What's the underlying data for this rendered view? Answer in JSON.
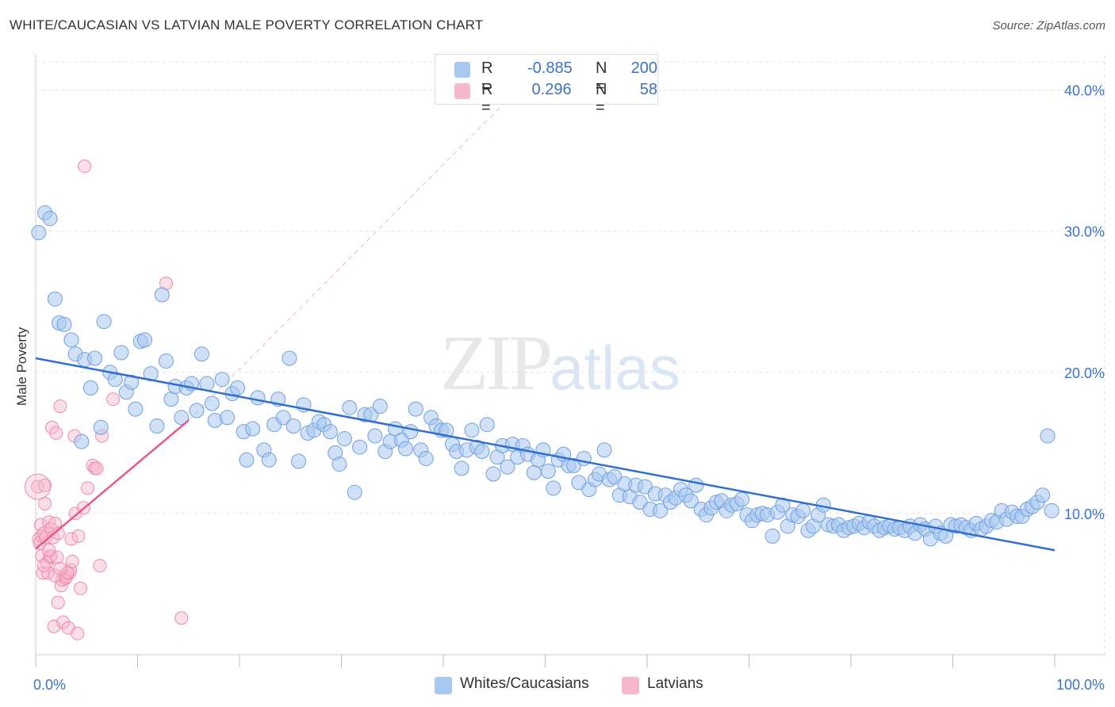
{
  "title": "WHITE/CAUCASIAN VS LATVIAN MALE POVERTY CORRELATION CHART",
  "source": "Source: ZipAtlas.com",
  "watermark": {
    "zip": "ZIP",
    "atlas": "atlas"
  },
  "legend": {
    "rows": [
      {
        "r_label": "R =",
        "r_value": "-0.885",
        "n_label": "N =",
        "n_value": "200",
        "color": "#a9c8f0"
      },
      {
        "r_label": "R =",
        "r_value": " 0.296",
        "n_label": "N =",
        "n_value": "58",
        "color": "#f7b8cb"
      }
    ]
  },
  "bottom_legend": [
    {
      "label": "Whites/Caucasians",
      "color": "#a9c8f0"
    },
    {
      "label": "Latvians",
      "color": "#f7b8cb"
    }
  ],
  "chart_data": {
    "type": "scatter",
    "title": "WHITE/CAUCASIAN VS LATVIAN MALE POVERTY CORRELATION CHART",
    "xlabel": "",
    "ylabel": "Male Poverty",
    "xlim": [
      0,
      100
    ],
    "ylim": [
      0,
      42
    ],
    "x_tick_labels": [
      "0.0%",
      "100.0%"
    ],
    "y_ticks": [
      10,
      20,
      30,
      40
    ],
    "y_tick_labels": [
      "10.0%",
      "20.0%",
      "30.0%",
      "40.0%"
    ],
    "grid": true,
    "legend_position": "top-center",
    "colors": {
      "white": "#6fa0e0",
      "latvian": "#f08aaa",
      "white_line": "#2f6fd0",
      "latvian_line": "#e85a8a"
    },
    "series": [
      {
        "name": "Whites/Caucasians",
        "R": -0.885,
        "N": 200,
        "trend": {
          "x": [
            0,
            100
          ],
          "y": [
            21.0,
            7.4
          ]
        },
        "points": [
          [
            0.3,
            29.9
          ],
          [
            0.9,
            31.3
          ],
          [
            1.4,
            30.9
          ],
          [
            1.9,
            25.2
          ],
          [
            2.3,
            23.5
          ],
          [
            2.8,
            23.4
          ],
          [
            3.5,
            22.3
          ],
          [
            3.9,
            21.3
          ],
          [
            4.5,
            15.1
          ],
          [
            4.8,
            20.9
          ],
          [
            5.4,
            18.9
          ],
          [
            5.8,
            21.0
          ],
          [
            6.4,
            16.1
          ],
          [
            6.7,
            23.6
          ],
          [
            7.3,
            20.0
          ],
          [
            7.8,
            19.5
          ],
          [
            8.4,
            21.4
          ],
          [
            8.9,
            18.6
          ],
          [
            9.4,
            19.3
          ],
          [
            9.8,
            17.4
          ],
          [
            10.3,
            22.2
          ],
          [
            10.7,
            22.3
          ],
          [
            11.3,
            19.9
          ],
          [
            11.9,
            16.2
          ],
          [
            12.4,
            25.5
          ],
          [
            12.8,
            20.8
          ],
          [
            13.3,
            18.1
          ],
          [
            13.7,
            19.0
          ],
          [
            14.3,
            16.8
          ],
          [
            14.8,
            18.9
          ],
          [
            15.3,
            19.2
          ],
          [
            15.8,
            17.3
          ],
          [
            16.3,
            21.3
          ],
          [
            16.8,
            19.2
          ],
          [
            17.3,
            17.8
          ],
          [
            17.6,
            16.6
          ],
          [
            18.3,
            19.5
          ],
          [
            18.8,
            16.8
          ],
          [
            19.3,
            18.5
          ],
          [
            19.8,
            18.9
          ],
          [
            20.4,
            15.8
          ],
          [
            20.7,
            13.8
          ],
          [
            21.3,
            16.0
          ],
          [
            21.8,
            18.2
          ],
          [
            22.4,
            14.5
          ],
          [
            22.9,
            13.8
          ],
          [
            23.4,
            16.3
          ],
          [
            23.8,
            18.1
          ],
          [
            24.3,
            16.8
          ],
          [
            24.9,
            21.0
          ],
          [
            25.3,
            16.2
          ],
          [
            25.8,
            13.7
          ],
          [
            26.3,
            17.7
          ],
          [
            26.7,
            15.7
          ],
          [
            27.3,
            15.9
          ],
          [
            27.8,
            16.5
          ],
          [
            28.3,
            16.3
          ],
          [
            28.9,
            15.8
          ],
          [
            29.4,
            14.3
          ],
          [
            29.8,
            13.5
          ],
          [
            30.3,
            15.3
          ],
          [
            30.8,
            17.5
          ],
          [
            31.3,
            11.5
          ],
          [
            31.8,
            14.7
          ],
          [
            32.3,
            17.0
          ],
          [
            32.9,
            17.0
          ],
          [
            33.3,
            15.5
          ],
          [
            33.8,
            17.6
          ],
          [
            34.3,
            14.4
          ],
          [
            34.8,
            15.1
          ],
          [
            35.3,
            16.0
          ],
          [
            35.9,
            15.2
          ],
          [
            36.3,
            14.6
          ],
          [
            36.8,
            15.8
          ],
          [
            37.3,
            17.4
          ],
          [
            37.8,
            14.5
          ],
          [
            38.3,
            13.9
          ],
          [
            38.8,
            16.8
          ],
          [
            39.3,
            16.2
          ],
          [
            39.8,
            15.9
          ],
          [
            40.3,
            15.9
          ],
          [
            40.9,
            14.9
          ],
          [
            41.3,
            14.4
          ],
          [
            41.8,
            13.2
          ],
          [
            42.3,
            14.5
          ],
          [
            42.8,
            15.9
          ],
          [
            43.3,
            14.7
          ],
          [
            43.8,
            14.4
          ],
          [
            44.3,
            16.3
          ],
          [
            44.9,
            12.8
          ],
          [
            45.3,
            14.0
          ],
          [
            45.8,
            14.8
          ],
          [
            46.3,
            13.3
          ],
          [
            46.8,
            14.9
          ],
          [
            47.3,
            14.0
          ],
          [
            47.8,
            14.8
          ],
          [
            48.3,
            14.2
          ],
          [
            48.9,
            12.9
          ],
          [
            49.3,
            13.8
          ],
          [
            49.8,
            14.5
          ],
          [
            50.3,
            13.0
          ],
          [
            50.8,
            11.8
          ],
          [
            51.3,
            13.8
          ],
          [
            51.8,
            14.2
          ],
          [
            52.3,
            13.4
          ],
          [
            52.8,
            13.4
          ],
          [
            53.3,
            12.2
          ],
          [
            53.8,
            13.9
          ],
          [
            54.3,
            11.7
          ],
          [
            54.9,
            12.4
          ],
          [
            55.3,
            12.8
          ],
          [
            55.8,
            14.5
          ],
          [
            56.3,
            12.4
          ],
          [
            56.8,
            12.6
          ],
          [
            57.3,
            11.3
          ],
          [
            57.8,
            12.1
          ],
          [
            58.3,
            11.2
          ],
          [
            58.9,
            12.0
          ],
          [
            59.3,
            10.8
          ],
          [
            59.8,
            11.9
          ],
          [
            60.3,
            10.3
          ],
          [
            60.8,
            11.4
          ],
          [
            61.3,
            10.2
          ],
          [
            61.8,
            11.3
          ],
          [
            62.3,
            10.8
          ],
          [
            62.8,
            11.1
          ],
          [
            63.3,
            11.7
          ],
          [
            63.8,
            11.3
          ],
          [
            64.3,
            10.9
          ],
          [
            64.8,
            12.0
          ],
          [
            65.3,
            10.3
          ],
          [
            65.8,
            9.9
          ],
          [
            66.3,
            10.4
          ],
          [
            66.8,
            10.8
          ],
          [
            67.3,
            10.9
          ],
          [
            67.8,
            10.2
          ],
          [
            68.3,
            10.6
          ],
          [
            68.8,
            10.7
          ],
          [
            69.3,
            11.0
          ],
          [
            69.8,
            9.9
          ],
          [
            70.3,
            9.5
          ],
          [
            70.8,
            9.9
          ],
          [
            71.3,
            10.0
          ],
          [
            71.8,
            9.9
          ],
          [
            72.3,
            8.4
          ],
          [
            72.8,
            10.1
          ],
          [
            73.3,
            10.6
          ],
          [
            73.8,
            9.1
          ],
          [
            74.3,
            9.9
          ],
          [
            74.8,
            9.8
          ],
          [
            75.3,
            10.2
          ],
          [
            75.8,
            8.8
          ],
          [
            76.3,
            9.1
          ],
          [
            76.8,
            9.9
          ],
          [
            77.3,
            10.6
          ],
          [
            77.8,
            9.2
          ],
          [
            78.3,
            9.1
          ],
          [
            78.8,
            9.2
          ],
          [
            79.3,
            8.8
          ],
          [
            79.8,
            9.0
          ],
          [
            80.3,
            9.1
          ],
          [
            80.8,
            9.3
          ],
          [
            81.3,
            9.0
          ],
          [
            81.8,
            9.4
          ],
          [
            82.3,
            9.1
          ],
          [
            82.8,
            8.8
          ],
          [
            83.3,
            9.0
          ],
          [
            83.8,
            9.1
          ],
          [
            84.3,
            8.9
          ],
          [
            84.8,
            9.0
          ],
          [
            85.3,
            8.8
          ],
          [
            85.8,
            9.1
          ],
          [
            86.3,
            8.6
          ],
          [
            86.8,
            9.2
          ],
          [
            87.3,
            8.9
          ],
          [
            87.8,
            8.2
          ],
          [
            88.3,
            9.1
          ],
          [
            88.8,
            8.6
          ],
          [
            89.3,
            8.4
          ],
          [
            89.8,
            9.2
          ],
          [
            90.3,
            9.1
          ],
          [
            90.8,
            9.2
          ],
          [
            91.3,
            9.0
          ],
          [
            91.8,
            8.8
          ],
          [
            92.3,
            9.3
          ],
          [
            92.8,
            8.9
          ],
          [
            93.3,
            9.1
          ],
          [
            93.8,
            9.5
          ],
          [
            94.3,
            9.4
          ],
          [
            94.8,
            10.2
          ],
          [
            95.3,
            9.6
          ],
          [
            95.8,
            10.1
          ],
          [
            96.3,
            9.8
          ],
          [
            96.8,
            9.8
          ],
          [
            97.3,
            10.3
          ],
          [
            97.8,
            10.5
          ],
          [
            98.3,
            10.8
          ],
          [
            98.8,
            11.3
          ],
          [
            99.3,
            15.5
          ],
          [
            99.7,
            10.2
          ]
        ]
      },
      {
        "name": "Latvians",
        "R": 0.296,
        "N": 58,
        "trend": {
          "x": [
            0,
            15
          ],
          "y": [
            7.5,
            16.6
          ]
        },
        "points": [
          [
            0.2,
            11.9
          ],
          [
            0.3,
            8.2
          ],
          [
            0.4,
            7.9
          ],
          [
            0.5,
            9.2
          ],
          [
            0.6,
            8.4
          ],
          [
            0.6,
            7.0
          ],
          [
            0.7,
            5.8
          ],
          [
            0.8,
            8.6
          ],
          [
            0.9,
            12.0
          ],
          [
            0.9,
            10.7
          ],
          [
            1.0,
            8.3
          ],
          [
            1.1,
            6.5
          ],
          [
            1.2,
            5.8
          ],
          [
            1.3,
            9.4
          ],
          [
            1.4,
            6.9
          ],
          [
            1.5,
            8.9
          ],
          [
            1.5,
            7.0
          ],
          [
            1.6,
            16.1
          ],
          [
            1.7,
            8.3
          ],
          [
            1.8,
            2.0
          ],
          [
            1.9,
            9.3
          ],
          [
            2.0,
            15.7
          ],
          [
            2.1,
            6.9
          ],
          [
            2.2,
            8.6
          ],
          [
            2.2,
            3.7
          ],
          [
            2.4,
            17.6
          ],
          [
            2.5,
            4.9
          ],
          [
            2.6,
            5.3
          ],
          [
            2.7,
            2.3
          ],
          [
            2.8,
            5.6
          ],
          [
            2.9,
            5.4
          ],
          [
            3.0,
            5.5
          ],
          [
            3.2,
            1.9
          ],
          [
            3.3,
            5.8
          ],
          [
            3.4,
            6.0
          ],
          [
            3.5,
            8.2
          ],
          [
            3.6,
            6.6
          ],
          [
            3.8,
            15.5
          ],
          [
            3.9,
            10.0
          ],
          [
            4.1,
            1.5
          ],
          [
            4.2,
            8.4
          ],
          [
            4.4,
            4.7
          ],
          [
            4.7,
            10.4
          ],
          [
            4.8,
            34.6
          ],
          [
            5.1,
            11.8
          ],
          [
            5.6,
            13.4
          ],
          [
            5.8,
            13.2
          ],
          [
            6.0,
            13.2
          ],
          [
            6.3,
            6.3
          ],
          [
            6.5,
            15.5
          ],
          [
            7.6,
            18.1
          ],
          [
            12.8,
            26.3
          ],
          [
            14.3,
            2.6
          ],
          [
            1.9,
            5.6
          ],
          [
            3.1,
            5.8
          ],
          [
            0.8,
            6.3
          ],
          [
            2.4,
            6.1
          ],
          [
            1.3,
            7.4
          ]
        ]
      }
    ]
  }
}
